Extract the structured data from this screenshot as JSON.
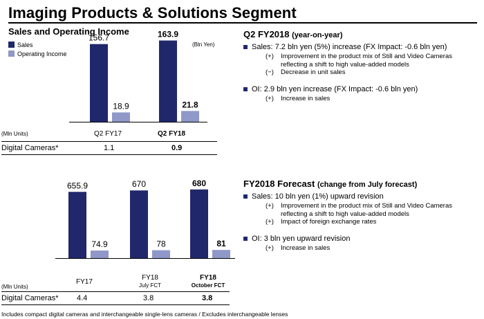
{
  "page_title": "Imaging Products & Solutions Segment",
  "colors": {
    "sales": "#20286b",
    "oi": "#8f98c8"
  },
  "chart_data": [
    {
      "type": "bar",
      "title": "Sales and Operating Income",
      "unit": "(Bln Yen)",
      "categories": [
        "Q2 FY17",
        "Q2 FY18"
      ],
      "series": [
        {
          "name": "Sales",
          "values": [
            156.7,
            163.9
          ],
          "labels": [
            "156.7",
            "163.9"
          ]
        },
        {
          "name": "Operating Income",
          "values": [
            18.9,
            21.8
          ],
          "labels": [
            "18.9",
            "21.8"
          ]
        }
      ],
      "ylim": [
        0,
        180
      ]
    },
    {
      "type": "bar",
      "title": "",
      "categories": [
        "FY17",
        "FY18",
        "FY18"
      ],
      "category_sublabels": [
        "",
        "July FCT",
        "October FCT"
      ],
      "series": [
        {
          "name": "Sales",
          "values": [
            655.9,
            670,
            680
          ],
          "labels": [
            "655.9",
            "670",
            "680"
          ]
        },
        {
          "name": "Operating Income",
          "values": [
            74.9,
            78,
            81
          ],
          "labels": [
            "74.9",
            "78",
            "81"
          ]
        }
      ],
      "ylim": [
        0,
        740
      ]
    }
  ],
  "table1": {
    "unit_label": "(Mln Units)",
    "col1": "Q2 FY17",
    "col2": "Q2 FY18",
    "row_label": "Digital Cameras*",
    "v1": "1.1",
    "v2": "0.9"
  },
  "table2": {
    "unit_label": "(Mln Units)",
    "col1": "FY17",
    "col2": "FY18",
    "col2_sub": "July FCT",
    "col3": "FY18",
    "col3_sub": "October FCT",
    "row_label": "Digital Cameras*",
    "v1": "4.4",
    "v2": "3.8",
    "v3": "3.8"
  },
  "q2": {
    "title": "Q2 FY2018",
    "title_sub": "(year-on-year)",
    "sales": "Sales: 7.2 bln yen (5%) increase (FX Impact: -0.6 bln yen)",
    "sales_sub": [
      {
        "mark": "(+)",
        "text": "Improvement in the product mix of Still and Video Cameras reflecting a shift to high value-added models"
      },
      {
        "mark": "(−)",
        "text": "Decrease in unit sales"
      }
    ],
    "oi": "OI: 2.9 bln yen increase (FX Impact: -0.6 bln yen)",
    "oi_sub": [
      {
        "mark": "(+)",
        "text": "Increase in sales"
      }
    ]
  },
  "forecast": {
    "title": "FY2018 Forecast",
    "title_sub": "(change from July forecast)",
    "sales": "Sales: 10 bln yen (1%) upward revision",
    "sales_sub": [
      {
        "mark": "(+)",
        "text": "Improvement in the product mix of Still and Video Cameras reflecting a shift to high value-added models"
      },
      {
        "mark": "(+)",
        "text": "Impact of foreign exchange rates"
      }
    ],
    "oi": "OI: 3 bln yen upward revision",
    "oi_sub": [
      {
        "mark": "(+)",
        "text": "Increase in sales"
      }
    ]
  },
  "footnote": "Includes compact digital cameras and interchangeable single-lens cameras / Excludes interchangeable lenses"
}
